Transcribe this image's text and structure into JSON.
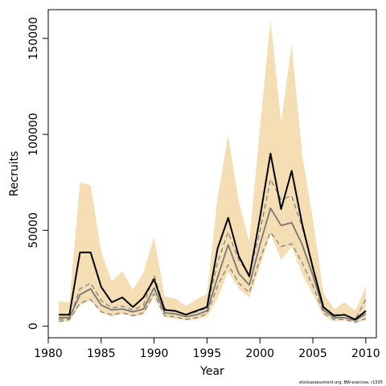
{
  "chart_data": {
    "type": "line",
    "xlabel": "Year",
    "ylabel": "Recruits",
    "xlim": [
      1980,
      2011
    ],
    "ylim": [
      -6000,
      165000
    ],
    "xticks": [
      1980,
      1985,
      1990,
      1995,
      2000,
      2005,
      2010
    ],
    "yticks": [
      0,
      50000,
      100000,
      150000
    ],
    "ytick_labels": [
      "0",
      "50000",
      "100000",
      "150000"
    ],
    "credit": "stockassessment.org, BW-exercise, r1535",
    "x": [
      1981,
      1982,
      1983,
      1984,
      1985,
      1986,
      1987,
      1988,
      1989,
      1990,
      1991,
      1992,
      1993,
      1994,
      1995,
      1996,
      1997,
      1998,
      1999,
      2000,
      2001,
      2002,
      2003,
      2004,
      2005,
      2006,
      2007,
      2008,
      2009,
      2010
    ],
    "band": {
      "color": "#f5deb3",
      "upper": [
        13000,
        12500,
        75000,
        73500,
        39000,
        23500,
        28500,
        19000,
        28000,
        46500,
        15500,
        14500,
        10500,
        14000,
        17000,
        67000,
        99500,
        65000,
        44000,
        103500,
        159500,
        106500,
        146500,
        89000,
        56000,
        17500,
        9000,
        12500,
        8000,
        20500
      ],
      "lower": [
        2000,
        2500,
        11000,
        13500,
        7000,
        5000,
        6500,
        5000,
        6000,
        15000,
        4500,
        4000,
        3000,
        3500,
        5000,
        14500,
        28500,
        19500,
        15000,
        31000,
        48500,
        34500,
        41500,
        27000,
        16500,
        5500,
        2500,
        3000,
        2000,
        3000
      ]
    },
    "series": [
      {
        "color": "#000000",
        "width": 2,
        "dash": "",
        "values": [
          6000,
          6000,
          38500,
          38500,
          20500,
          12500,
          15000,
          10000,
          15000,
          24500,
          8500,
          8000,
          6000,
          8000,
          10000,
          40500,
          56500,
          36500,
          26000,
          56500,
          90000,
          61000,
          81000,
          53000,
          30500,
          10000,
          5500,
          6000,
          3500,
          8000
        ]
      },
      {
        "color": "#777777",
        "width": 1.8,
        "dash": "",
        "values": [
          4500,
          4500,
          16500,
          19500,
          11000,
          8500,
          9000,
          7500,
          9000,
          20000,
          7000,
          6500,
          5000,
          6000,
          8000,
          25500,
          42500,
          27500,
          21500,
          42500,
          61500,
          52500,
          54000,
          42500,
          26500,
          8500,
          4500,
          4500,
          3000,
          6500
        ]
      },
      {
        "color": "#888888",
        "width": 1.4,
        "dash": "6,4",
        "values": [
          3500,
          4000,
          19500,
          22500,
          13500,
          9500,
          10500,
          8500,
          11000,
          26500,
          9000,
          8000,
          6000,
          7500,
          9500,
          33500,
          49000,
          34500,
          27000,
          49500,
          76500,
          66000,
          68000,
          51500,
          31500,
          9500,
          6000,
          6000,
          3500,
          14000
        ]
      },
      {
        "color": "#888888",
        "width": 1.4,
        "dash": "6,4",
        "values": [
          2500,
          3500,
          12000,
          14000,
          7500,
          6000,
          7000,
          5500,
          7000,
          17000,
          5500,
          5000,
          3500,
          4500,
          6500,
          21000,
          32000,
          22500,
          17500,
          35000,
          49000,
          41500,
          43000,
          33000,
          21000,
          7000,
          3500,
          3500,
          2000,
          4000
        ]
      }
    ]
  }
}
